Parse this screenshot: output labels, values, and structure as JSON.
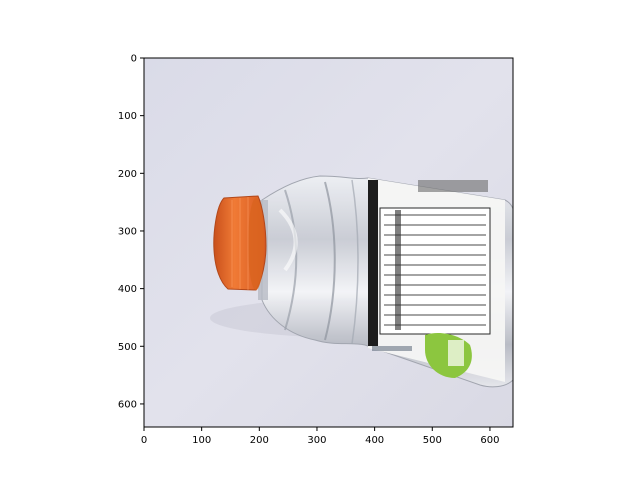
{
  "figure": {
    "background": "#ffffff",
    "axes_color": "#000000",
    "image_subject": "clear plastic sports drink bottle with orange cap and nutrition facts label",
    "image_colors": {
      "background": "#dddde8",
      "cap": "#e66a2a",
      "label_accent": "#8cc63f"
    }
  },
  "axes": {
    "x_range": [
      0,
      640
    ],
    "y_range": [
      0,
      640
    ],
    "y_inverted": true,
    "x_ticks": [
      0,
      100,
      200,
      300,
      400,
      500,
      600
    ],
    "y_ticks": [
      0,
      100,
      200,
      300,
      400,
      500,
      600
    ],
    "x_tick_labels": [
      "0",
      "100",
      "200",
      "300",
      "400",
      "500",
      "600"
    ],
    "y_tick_labels": [
      "0",
      "100",
      "200",
      "300",
      "400",
      "500",
      "600"
    ]
  }
}
